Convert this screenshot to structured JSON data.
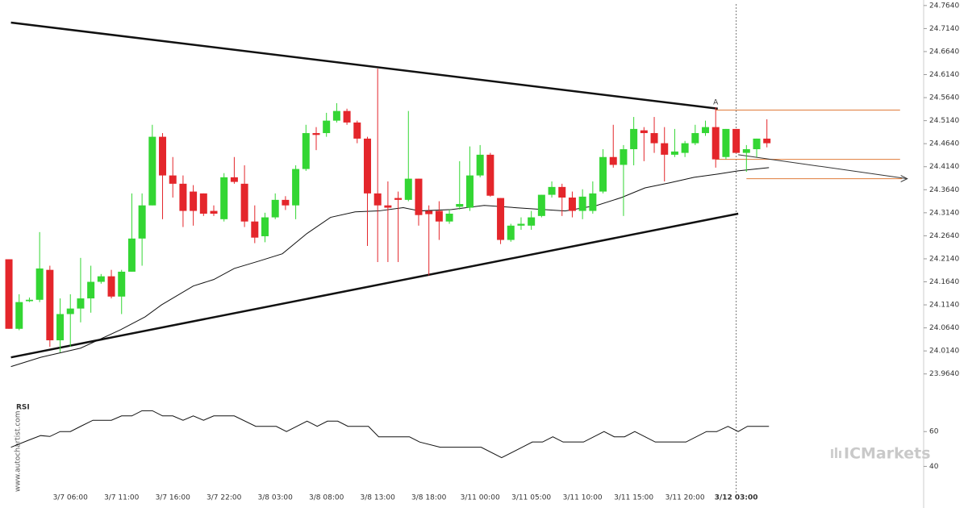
{
  "chart_data": [
    {
      "type": "candlestick",
      "categories": [
        null,
        null,
        null,
        null,
        null,
        null,
        "3/7 06:00",
        null,
        null,
        null,
        null,
        "3/7 11:00",
        null,
        null,
        null,
        null,
        "3/7 16:00",
        null,
        null,
        null,
        null,
        "3/7 22:00",
        null,
        null,
        null,
        null,
        "3/8 03:00",
        null,
        null,
        null,
        null,
        "3/8 08:00",
        null,
        null,
        null,
        null,
        "3/8 13:00",
        null,
        null,
        null,
        null,
        "3/8 18:00",
        null,
        null,
        null,
        null,
        "3/11 00:00",
        null,
        null,
        null,
        null,
        "3/11 05:00",
        null,
        null,
        null,
        null,
        "3/11 10:00",
        null,
        null,
        null,
        null,
        "3/11 15:00",
        null,
        null,
        null,
        null,
        "3/11 20:00",
        null,
        null,
        null,
        null,
        "3/12 03:00",
        null,
        null,
        null
      ],
      "open": [
        24.213,
        24.062,
        24.122,
        24.125,
        24.19,
        24.037,
        24.094,
        24.106,
        24.128,
        24.164,
        24.176,
        24.132,
        24.186,
        24.258,
        24.33,
        24.479,
        24.395,
        24.377,
        24.36,
        24.356,
        24.318,
        24.3,
        24.391,
        24.377,
        24.295,
        24.263,
        24.304,
        24.342,
        24.33,
        24.409,
        24.487,
        24.487,
        24.514,
        24.535,
        24.51,
        24.475,
        24.356,
        24.33,
        24.346,
        24.342,
        24.388,
        24.318,
        24.318,
        24.295,
        24.327,
        24.325,
        24.395,
        24.44,
        24.346,
        24.255,
        24.286,
        24.286,
        24.307,
        24.353,
        24.37,
        24.347,
        24.318,
        24.318,
        24.36,
        24.435,
        24.418,
        24.452,
        24.493,
        24.487,
        24.465,
        24.44,
        24.444,
        24.465,
        24.487,
        24.5,
        24.435,
        24.496,
        24.444,
        24.452,
        24.475
      ],
      "high": [
        24.213,
        24.137,
        24.13,
        24.272,
        24.199,
        24.128,
        24.137,
        24.216,
        24.199,
        24.181,
        24.19,
        24.19,
        24.356,
        24.356,
        24.505,
        24.487,
        24.435,
        24.395,
        24.374,
        24.356,
        24.33,
        24.4,
        24.435,
        24.417,
        24.33,
        24.314,
        24.356,
        24.35,
        24.417,
        24.505,
        24.5,
        24.531,
        24.552,
        24.54,
        24.514,
        24.479,
        24.627,
        24.382,
        24.36,
        24.535,
        24.388,
        24.33,
        24.339,
        24.321,
        24.426,
        24.458,
        24.461,
        24.444,
        24.346,
        24.29,
        24.304,
        24.318,
        24.353,
        24.382,
        24.377,
        24.36,
        24.365,
        24.382,
        24.452,
        24.505,
        24.461,
        24.522,
        24.5,
        24.522,
        24.5,
        24.496,
        24.47,
        24.505,
        24.514,
        24.543,
        24.496,
        24.496,
        24.461,
        24.475,
        24.517
      ],
      "low": [
        24.062,
        24.059,
        24.12,
        24.12,
        24.023,
        24.011,
        24.023,
        24.076,
        24.097,
        24.16,
        24.128,
        24.094,
        24.186,
        24.199,
        24.33,
        24.3,
        24.347,
        24.283,
        24.286,
        24.307,
        24.307,
        24.295,
        24.377,
        24.283,
        24.248,
        24.25,
        24.3,
        24.32,
        24.3,
        24.405,
        24.45,
        24.479,
        24.51,
        24.505,
        24.465,
        24.242,
        24.207,
        24.207,
        24.207,
        24.339,
        24.286,
        24.178,
        24.255,
        24.29,
        24.321,
        24.318,
        24.391,
        24.349,
        24.246,
        24.251,
        24.277,
        24.277,
        24.304,
        24.347,
        24.307,
        24.304,
        24.3,
        24.312,
        24.356,
        24.412,
        24.307,
        24.417,
        24.426,
        24.444,
        24.382,
        24.435,
        24.435,
        24.461,
        24.481,
        24.412,
        24.43,
        24.444,
        24.403,
        24.435,
        24.456
      ],
      "close": [
        24.062,
        24.12,
        24.125,
        24.193,
        24.037,
        24.094,
        24.106,
        24.128,
        24.164,
        24.176,
        24.132,
        24.186,
        24.258,
        24.33,
        24.479,
        24.395,
        24.377,
        24.318,
        24.318,
        24.312,
        24.312,
        24.391,
        24.381,
        24.295,
        24.26,
        24.304,
        24.342,
        24.33,
        24.409,
        24.487,
        24.483,
        24.514,
        24.535,
        24.51,
        24.475,
        24.356,
        24.33,
        24.325,
        24.342,
        24.388,
        24.309,
        24.311,
        24.295,
        24.312,
        24.333,
        24.395,
        24.44,
        24.351,
        24.255,
        24.286,
        24.29,
        24.304,
        24.353,
        24.37,
        24.347,
        24.318,
        24.349,
        24.356,
        24.435,
        24.418,
        24.452,
        24.496,
        24.487,
        24.465,
        24.44,
        24.447,
        24.465,
        24.487,
        24.5,
        24.43,
        24.496,
        24.444,
        24.452,
        24.475,
        24.465
      ],
      "up_color": "#33d633",
      "down_color": "#e4262b",
      "xlim": [
        -0.87,
        89.3
      ],
      "ylim": [
        23.918,
        24.776
      ],
      "yticks": [
        {
          "value": 24.764,
          "label": "24.7640"
        },
        {
          "value": 24.714,
          "label": "24.7140"
        },
        {
          "value": 24.664,
          "label": "24.6640"
        },
        {
          "value": 24.614,
          "label": "24.6140"
        },
        {
          "value": 24.564,
          "label": "24.5640"
        },
        {
          "value": 24.514,
          "label": "24.5140"
        },
        {
          "value": 24.464,
          "label": "24.4640"
        },
        {
          "value": 24.414,
          "label": "24.4140"
        },
        {
          "value": 24.364,
          "label": "24.3640"
        },
        {
          "value": 24.314,
          "label": "24.3140"
        },
        {
          "value": 24.264,
          "label": "24.2640"
        },
        {
          "value": 24.214,
          "label": "24.2140"
        },
        {
          "value": 24.164,
          "label": "24.1640"
        },
        {
          "value": 24.114,
          "label": "24.1140"
        },
        {
          "value": 24.064,
          "label": "24.0640"
        },
        {
          "value": 24.014,
          "label": "24.0140"
        },
        {
          "value": 23.964,
          "label": "23.9640"
        }
      ],
      "ma": {
        "color": "#111111",
        "x": [
          0.2,
          3.1,
          7,
          10.9,
          13.3,
          14.9,
          18,
          20,
          22,
          24.4,
          26.7,
          29.1,
          31.4,
          33.8,
          36.1,
          38.5,
          40.1,
          43.2,
          46.4,
          49.5,
          54.3,
          57.4,
          59.8,
          62.1,
          64.5,
          66.9,
          69.2,
          71.2,
          74.2
        ],
        "values": [
          23.98,
          24.0,
          24.02,
          24.06,
          24.088,
          24.114,
          24.155,
          24.169,
          24.193,
          24.209,
          24.225,
          24.269,
          24.304,
          24.316,
          24.318,
          24.325,
          24.318,
          24.321,
          24.33,
          24.325,
          24.318,
          24.33,
          24.347,
          24.368,
          24.379,
          24.391,
          24.398,
          24.405,
          24.412
        ]
      },
      "trendlines": [
        {
          "x": [
            0.2,
            69.2
          ],
          "values": [
            24.727,
            24.54
          ]
        },
        {
          "x": [
            0.2,
            71.2
          ],
          "values": [
            24.0,
            24.312
          ]
        }
      ],
      "projection": {
        "x": [
          71.2,
          87.7
        ],
        "values": [
          24.44,
          24.388
        ]
      },
      "levels": [
        {
          "x": [
            69,
            87
          ],
          "value": 24.537
        },
        {
          "x": [
            69,
            87
          ],
          "value": 24.43
        },
        {
          "x": [
            72,
            87.2
          ],
          "value": 24.388
        }
      ],
      "level_color": "#e07b39",
      "current_x": 71,
      "marker": {
        "x": 69,
        "label": "A"
      }
    },
    {
      "type": "line",
      "title": "RSI",
      "color": "#111111",
      "x": [
        0.2,
        1.9,
        3.1,
        4,
        5,
        6,
        7,
        8.2,
        10,
        11,
        12,
        13,
        14,
        15,
        16,
        17,
        18,
        19,
        20,
        22,
        24.1,
        26.1,
        27.1,
        29.1,
        30.1,
        31.1,
        32.1,
        33.1,
        35.1,
        36.1,
        39.1,
        40.1,
        42.1,
        46.1,
        48.1,
        50.1,
        51.1,
        52.1,
        53.1,
        54.1,
        56.1,
        58.1,
        59.1,
        60.1,
        61.1,
        63.1,
        66.1,
        68.1,
        69.1,
        70.2,
        71.2,
        72.1,
        74.2
      ],
      "values": [
        51,
        55,
        57.7,
        57.2,
        60,
        60,
        63,
        66.5,
        66.5,
        69,
        69,
        72,
        72,
        69,
        69,
        66.5,
        69,
        66.5,
        69,
        69,
        63,
        63,
        60,
        66,
        63,
        66,
        66,
        63,
        63,
        57,
        57,
        54,
        51,
        51,
        45,
        51,
        54,
        54,
        57,
        54,
        54,
        60,
        57,
        57,
        60,
        54,
        54,
        60,
        60,
        63,
        60,
        63,
        63
      ],
      "ylim": [
        30,
        74
      ],
      "yticks": [
        40,
        60
      ]
    }
  ],
  "watermark": {
    "site": "www.autochartist.com",
    "brand": "ICMarkets"
  }
}
